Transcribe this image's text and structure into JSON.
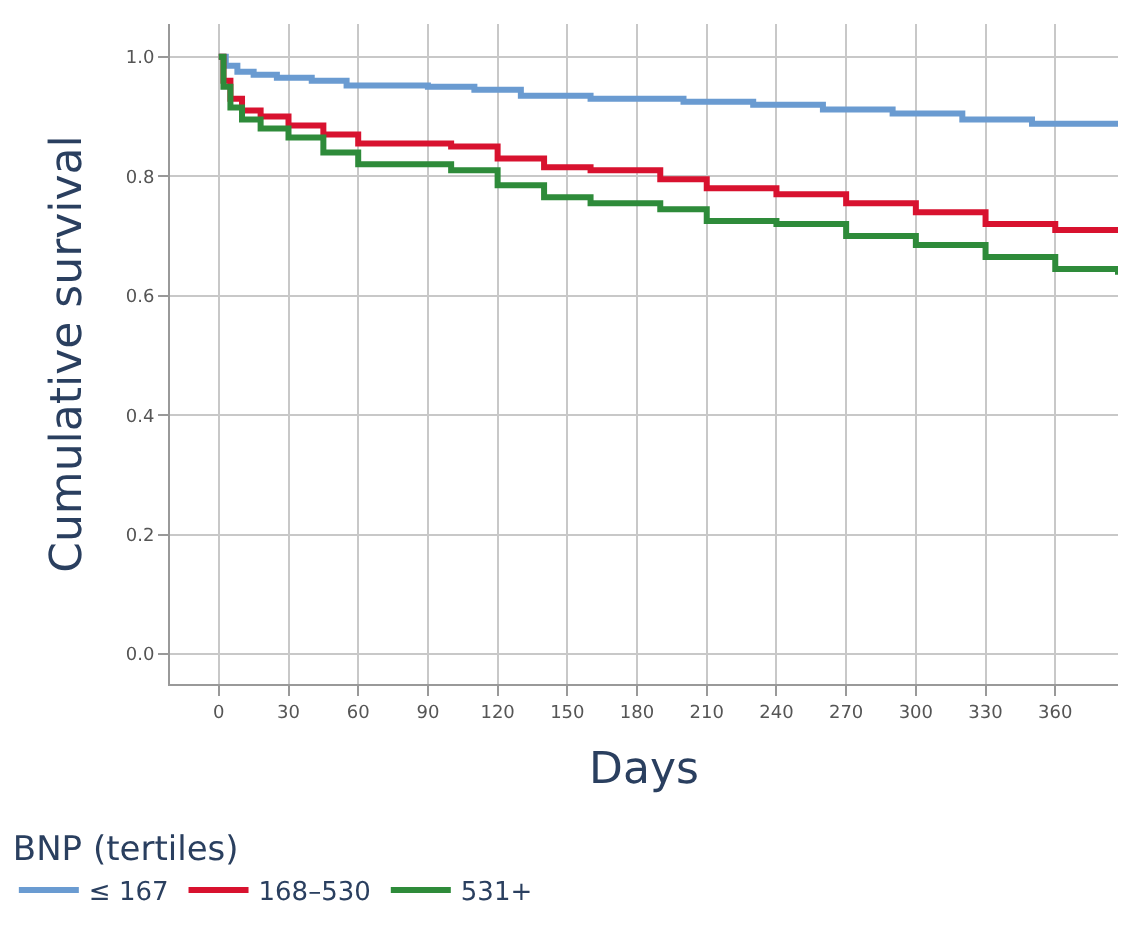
{
  "chart_data": {
    "type": "step",
    "xlabel": "Days",
    "ylabel": "Cumulative survival",
    "legend_title": "BNP (tertiles)",
    "xlim": [
      -21,
      387
    ],
    "ylim": [
      -0.05,
      1.055
    ],
    "xticks": [
      0,
      30,
      60,
      90,
      120,
      150,
      180,
      210,
      240,
      270,
      300,
      330,
      360
    ],
    "yticks": [
      {
        "value": 0,
        "label": "0.0"
      },
      {
        "value": 0.2,
        "label": "0.2"
      },
      {
        "value": 0.4,
        "label": "0.4"
      },
      {
        "value": 0.6,
        "label": "0.6"
      },
      {
        "value": 0.8,
        "label": "0.8"
      },
      {
        "value": 1,
        "label": "1.0"
      }
    ],
    "grid": true,
    "legend": "bottom",
    "line_style": "solid",
    "series": [
      {
        "name": "≤ 167",
        "color": "#6a9bd1",
        "x": [
          0,
          3,
          8,
          15,
          25,
          40,
          55,
          90,
          110,
          130,
          160,
          200,
          230,
          260,
          290,
          320,
          350,
          387
        ],
        "values": [
          1.0,
          0.985,
          0.975,
          0.97,
          0.965,
          0.96,
          0.952,
          0.95,
          0.945,
          0.935,
          0.93,
          0.925,
          0.92,
          0.912,
          0.905,
          0.895,
          0.888,
          0.885
        ]
      },
      {
        "name": "168–530",
        "color": "#d8122f",
        "x": [
          0,
          2,
          5,
          10,
          18,
          30,
          45,
          60,
          100,
          120,
          140,
          160,
          190,
          210,
          240,
          270,
          300,
          330,
          360,
          387
        ],
        "values": [
          1.0,
          0.96,
          0.93,
          0.91,
          0.9,
          0.885,
          0.87,
          0.855,
          0.85,
          0.83,
          0.815,
          0.81,
          0.795,
          0.78,
          0.77,
          0.755,
          0.74,
          0.72,
          0.71,
          0.705
        ]
      },
      {
        "name": "531+",
        "color": "#2e8b3a",
        "x": [
          0,
          2,
          5,
          10,
          18,
          30,
          45,
          60,
          100,
          120,
          140,
          160,
          190,
          210,
          240,
          270,
          300,
          330,
          360,
          387
        ],
        "values": [
          1.0,
          0.95,
          0.915,
          0.895,
          0.88,
          0.865,
          0.84,
          0.82,
          0.81,
          0.785,
          0.765,
          0.755,
          0.745,
          0.725,
          0.72,
          0.7,
          0.685,
          0.665,
          0.645,
          0.635
        ]
      }
    ]
  }
}
